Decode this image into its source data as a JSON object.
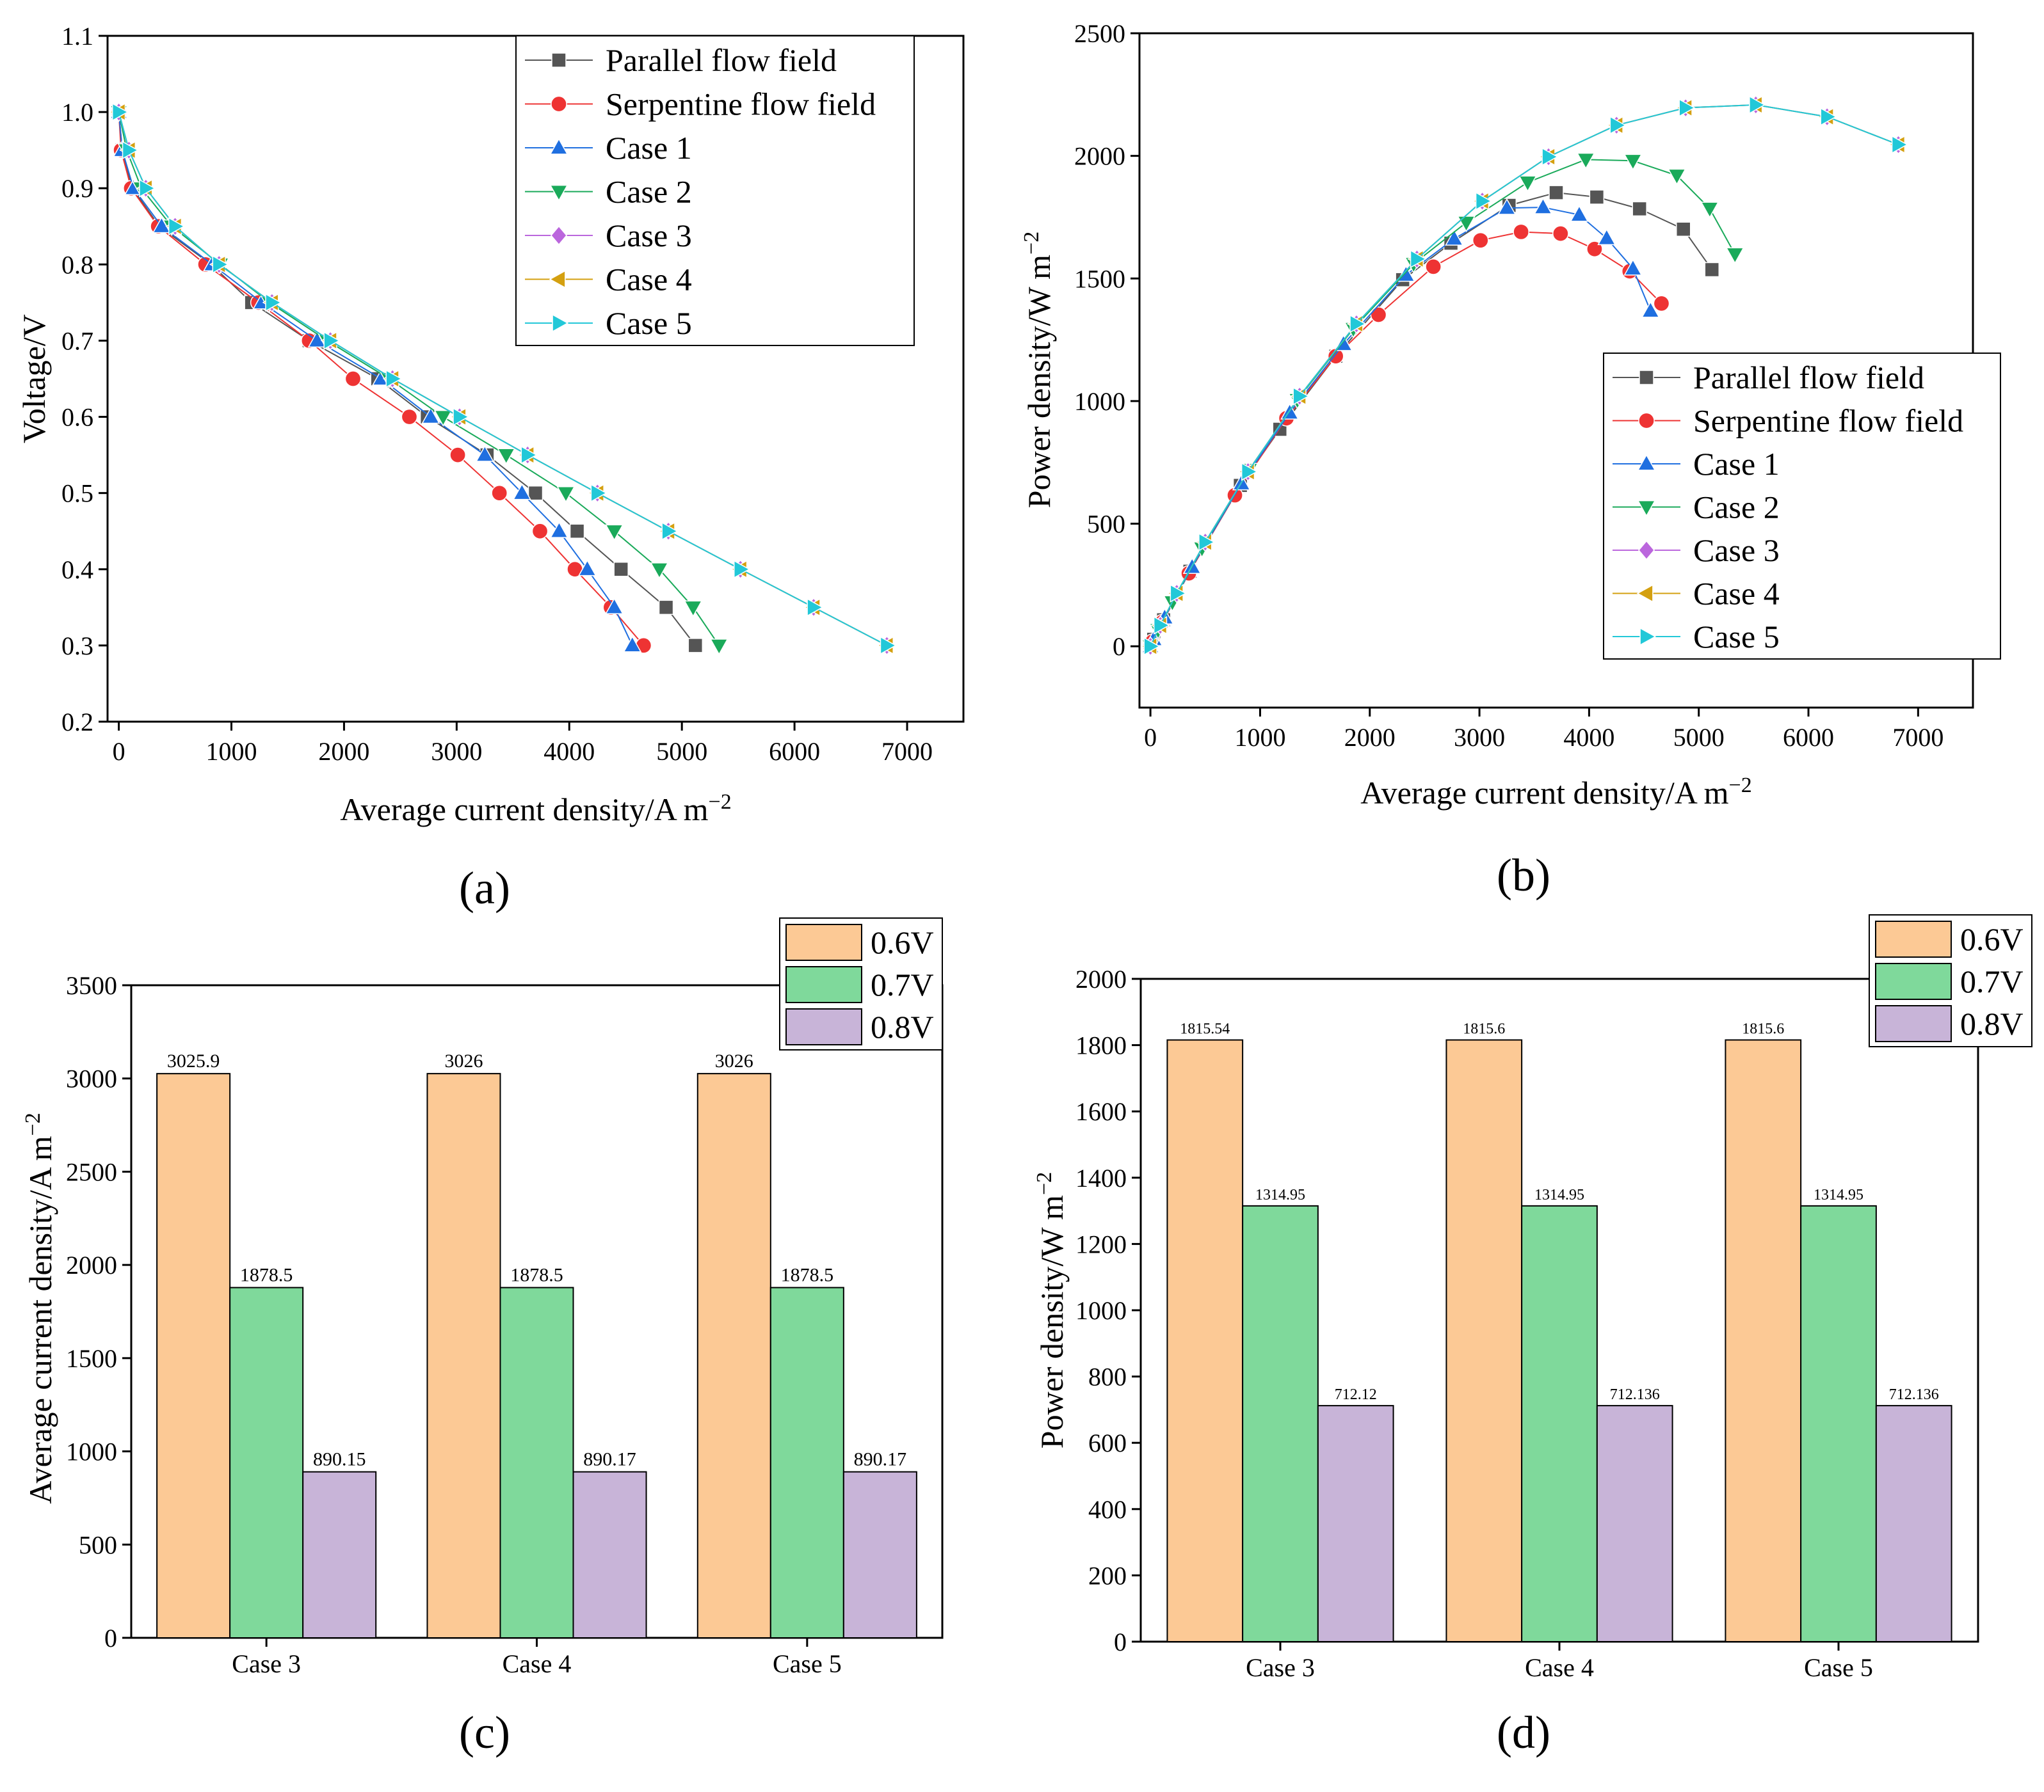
{
  "chart_data": [
    {
      "type": "line",
      "panel_label": "(a)",
      "xlabel": "Average current density/A m",
      "xlabel_sup": "−2",
      "ylabel": "Voltage/V",
      "xlim": [
        -100,
        7500
      ],
      "ylim": [
        0.2,
        1.1
      ],
      "xticks": [
        0,
        1000,
        2000,
        3000,
        4000,
        5000,
        6000,
        7000
      ],
      "yticks": [
        0.2,
        0.3,
        0.4,
        0.5,
        0.6,
        0.7,
        0.8,
        0.9,
        1.0,
        1.1
      ],
      "legend_position": "top-right",
      "series": [
        {
          "name": "Parallel flow field",
          "color": "#555555",
          "marker": "square",
          "x": [
            0,
            30,
            120,
            360,
            820,
            1180,
            1690,
            2300,
            2740,
            3270,
            3700,
            4070,
            4460,
            4860,
            5120
          ],
          "y": [
            1.0,
            0.95,
            0.9,
            0.85,
            0.8,
            0.75,
            0.7,
            0.65,
            0.6,
            0.55,
            0.5,
            0.45,
            0.4,
            0.35,
            0.3
          ]
        },
        {
          "name": "Serpentine flow field",
          "color": "#ee3333",
          "marker": "circle",
          "x": [
            0,
            20,
            110,
            350,
            770,
            1240,
            1690,
            2080,
            2580,
            3010,
            3380,
            3740,
            4050,
            4370,
            4660
          ],
          "y": [
            1.0,
            0.95,
            0.9,
            0.85,
            0.8,
            0.75,
            0.7,
            0.65,
            0.6,
            0.55,
            0.5,
            0.45,
            0.4,
            0.35,
            0.3
          ]
        },
        {
          "name": "Case 1",
          "color": "#1f6fe0",
          "marker": "triangle-up",
          "x": [
            0,
            30,
            130,
            380,
            830,
            1270,
            1760,
            2330,
            2770,
            3250,
            3580,
            3910,
            4160,
            4400,
            4560
          ],
          "y": [
            1.0,
            0.95,
            0.9,
            0.85,
            0.8,
            0.75,
            0.7,
            0.65,
            0.6,
            0.55,
            0.5,
            0.45,
            0.4,
            0.35,
            0.3
          ]
        },
        {
          "name": "Case 2",
          "color": "#1aaa5a",
          "marker": "triangle-down",
          "x": [
            0,
            70,
            200,
            470,
            900,
            1340,
            1850,
            2400,
            2880,
            3440,
            3970,
            4400,
            4800,
            5100,
            5330
          ],
          "y": [
            1.0,
            0.95,
            0.9,
            0.85,
            0.8,
            0.75,
            0.7,
            0.65,
            0.6,
            0.55,
            0.5,
            0.45,
            0.4,
            0.35,
            0.3
          ]
        },
        {
          "name": "Case 3",
          "color": "#bb66dd",
          "marker": "diamond",
          "x": [
            0,
            90,
            240,
            500,
            890,
            1360,
            1878.5,
            2430,
            3025.9,
            3630,
            4250,
            4880,
            5520,
            6170,
            6820
          ],
          "y": [
            1.0,
            0.95,
            0.9,
            0.85,
            0.8,
            0.75,
            0.7,
            0.65,
            0.6,
            0.55,
            0.5,
            0.45,
            0.4,
            0.35,
            0.3
          ]
        },
        {
          "name": "Case 4",
          "color": "#d4a010",
          "marker": "triangle-left",
          "x": [
            0,
            90,
            240,
            500,
            890,
            1360,
            1878.5,
            2430,
            3026,
            3630,
            4250,
            4880,
            5520,
            6170,
            6820
          ],
          "y": [
            1.0,
            0.95,
            0.9,
            0.85,
            0.8,
            0.75,
            0.7,
            0.65,
            0.6,
            0.55,
            0.5,
            0.45,
            0.4,
            0.35,
            0.3
          ]
        },
        {
          "name": "Case 5",
          "color": "#22c8d8",
          "marker": "triangle-right",
          "x": [
            0,
            90,
            240,
            500,
            890,
            1360,
            1878.5,
            2430,
            3026,
            3630,
            4250,
            4880,
            5520,
            6170,
            6820
          ],
          "y": [
            1.0,
            0.95,
            0.9,
            0.85,
            0.8,
            0.75,
            0.7,
            0.65,
            0.6,
            0.55,
            0.5,
            0.45,
            0.4,
            0.35,
            0.3
          ]
        }
      ]
    },
    {
      "type": "line",
      "panel_label": "(b)",
      "xlabel": "Average current density/A m",
      "xlabel_sup": "−2",
      "ylabel": "Power density/W m",
      "ylabel_sup": "−2",
      "xlim": [
        -100,
        7500
      ],
      "ylim": [
        -250,
        2500
      ],
      "xticks": [
        0,
        1000,
        2000,
        3000,
        4000,
        5000,
        6000,
        7000
      ],
      "yticks": [
        0,
        500,
        1000,
        1500,
        2000,
        2500
      ],
      "legend_position": "bottom-right",
      "series": [
        {
          "name": "Parallel flow field",
          "color": "#555555",
          "marker": "square",
          "x": [
            0,
            30,
            120,
            360,
            820,
            1180,
            1690,
            2300,
            2740,
            3270,
            3700,
            4070,
            4460,
            4860,
            5120
          ],
          "y": [
            0,
            28.5,
            108,
            306,
            656,
            885,
            1183,
            1495,
            1644,
            1798,
            1850,
            1832,
            1784,
            1701,
            1536
          ]
        },
        {
          "name": "Serpentine flow field",
          "color": "#ee3333",
          "marker": "circle",
          "x": [
            0,
            20,
            110,
            350,
            770,
            1240,
            1690,
            2080,
            2580,
            3010,
            3380,
            3740,
            4050,
            4370,
            4660
          ],
          "y": [
            0,
            19,
            99,
            297.5,
            616,
            930,
            1183,
            1352,
            1548,
            1655.5,
            1690,
            1683,
            1620,
            1529.5,
            1398
          ]
        },
        {
          "name": "Case 1",
          "color": "#1f6fe0",
          "marker": "triangle-up",
          "x": [
            0,
            30,
            130,
            380,
            830,
            1270,
            1760,
            2330,
            2770,
            3250,
            3580,
            3910,
            4160,
            4400,
            4560
          ],
          "y": [
            0,
            28.5,
            117,
            323,
            664,
            952.5,
            1232,
            1514.5,
            1662,
            1787.5,
            1790,
            1759.5,
            1664,
            1540,
            1368
          ]
        },
        {
          "name": "Case 2",
          "color": "#1aaa5a",
          "marker": "triangle-down",
          "x": [
            0,
            70,
            200,
            470,
            900,
            1340,
            1850,
            2400,
            2880,
            3440,
            3970,
            4400,
            4800,
            5100,
            5330
          ],
          "y": [
            0,
            66.5,
            180,
            399.5,
            720,
            1005,
            1295,
            1560,
            1728,
            1892,
            1985,
            1980,
            1920,
            1785,
            1599
          ]
        },
        {
          "name": "Case 3",
          "color": "#bb66dd",
          "marker": "diamond",
          "x": [
            0,
            90,
            240,
            500,
            890,
            1360,
            1878.5,
            2430,
            3025.9,
            3630,
            4250,
            4880,
            5520,
            6170,
            6820
          ],
          "y": [
            0,
            85.5,
            216,
            425,
            712.12,
            1020,
            1314.95,
            1579.5,
            1815.54,
            1996.5,
            2125,
            2196,
            2208,
            2159.5,
            2046
          ]
        },
        {
          "name": "Case 4",
          "color": "#d4a010",
          "marker": "triangle-left",
          "x": [
            0,
            90,
            240,
            500,
            890,
            1360,
            1878.5,
            2430,
            3026,
            3630,
            4250,
            4880,
            5520,
            6170,
            6820
          ],
          "y": [
            0,
            85.5,
            216,
            425,
            712.136,
            1020,
            1314.95,
            1579.5,
            1815.6,
            1996.5,
            2125,
            2196,
            2208,
            2159.5,
            2046
          ]
        },
        {
          "name": "Case 5",
          "color": "#22c8d8",
          "marker": "triangle-right",
          "x": [
            0,
            90,
            240,
            500,
            890,
            1360,
            1878.5,
            2430,
            3026,
            3630,
            4250,
            4880,
            5520,
            6170,
            6820
          ],
          "y": [
            0,
            85.5,
            216,
            425,
            712.136,
            1020,
            1314.95,
            1579.5,
            1815.6,
            1996.5,
            2125,
            2196,
            2208,
            2159.5,
            2046
          ]
        }
      ]
    },
    {
      "type": "bar",
      "panel_label": "(c)",
      "xlabel": "",
      "ylabel": "Average current density/A m",
      "ylabel_sup": "−2",
      "categories": [
        "Case 3",
        "Case 4",
        "Case 5"
      ],
      "ylim": [
        0,
        3500
      ],
      "yticks": [
        0,
        500,
        1000,
        1500,
        2000,
        2500,
        3000,
        3500
      ],
      "legend_position": "top-right",
      "series": [
        {
          "name": "0.6V",
          "color": "#fcc995",
          "values": [
            3025.9,
            3026,
            3026
          ],
          "labels": [
            "3025.9",
            "3026",
            "3026"
          ]
        },
        {
          "name": "0.7V",
          "color": "#7fd99b",
          "values": [
            1878.5,
            1878.5,
            1878.5
          ],
          "labels": [
            "1878.5",
            "1878.5",
            "1878.5"
          ]
        },
        {
          "name": "0.8V",
          "color": "#c8b4d8",
          "values": [
            890.15,
            890.17,
            890.17
          ],
          "labels": [
            "890.15",
            "890.17",
            "890.17"
          ]
        }
      ]
    },
    {
      "type": "bar",
      "panel_label": "(d)",
      "xlabel": "",
      "ylabel": "Power density/W m",
      "ylabel_sup": "−2",
      "categories": [
        "Case 3",
        "Case 4",
        "Case 5"
      ],
      "ylim": [
        0,
        2000
      ],
      "yticks": [
        0,
        200,
        400,
        600,
        800,
        1000,
        1200,
        1400,
        1600,
        1800,
        2000
      ],
      "legend_position": "top-right",
      "series": [
        {
          "name": "0.6V",
          "color": "#fcc995",
          "values": [
            1815.54,
            1815.6,
            1815.6
          ],
          "labels": [
            "1815.54",
            "1815.6",
            "1815.6"
          ]
        },
        {
          "name": "0.7V",
          "color": "#7fd99b",
          "values": [
            1314.95,
            1314.95,
            1314.95
          ],
          "labels": [
            "1314.95",
            "1314.95",
            "1314.95"
          ]
        },
        {
          "name": "0.8V",
          "color": "#c8b4d8",
          "values": [
            712.12,
            712.136,
            712.136
          ],
          "labels": [
            "712.12",
            "712.136",
            "712.136"
          ]
        }
      ]
    }
  ]
}
